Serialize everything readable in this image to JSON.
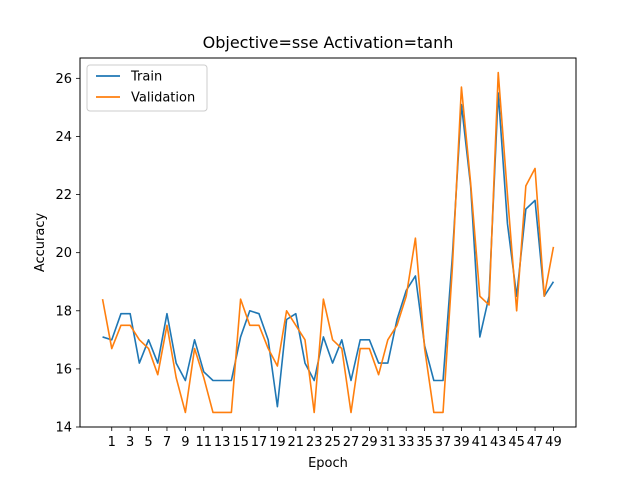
{
  "chart_data": {
    "type": "line",
    "title": "Objective=sse Activation=tanh",
    "xlabel": "Epoch",
    "ylabel": "Accuracy",
    "xlim": [
      -2.45,
      51.45
    ],
    "ylim": [
      14,
      26.7
    ],
    "x_ticks": [
      1,
      3,
      5,
      7,
      9,
      11,
      13,
      15,
      17,
      19,
      21,
      23,
      25,
      27,
      29,
      31,
      33,
      35,
      37,
      39,
      41,
      43,
      45,
      47,
      49
    ],
    "y_ticks": [
      14,
      16,
      18,
      20,
      22,
      24,
      26
    ],
    "grid": false,
    "legend_position": "top-left",
    "x": [
      0,
      1,
      2,
      3,
      4,
      5,
      6,
      7,
      8,
      9,
      10,
      11,
      12,
      13,
      14,
      15,
      16,
      17,
      18,
      19,
      20,
      21,
      22,
      23,
      24,
      25,
      26,
      27,
      28,
      29,
      30,
      31,
      32,
      33,
      34,
      35,
      36,
      37,
      38,
      39,
      40,
      41,
      42,
      43,
      44,
      45,
      46,
      47,
      48,
      49
    ],
    "series": [
      {
        "name": "Train",
        "color": "#1f77b4",
        "values": [
          17.1,
          17.0,
          17.9,
          17.9,
          16.2,
          17.0,
          16.2,
          17.9,
          16.2,
          15.6,
          17.0,
          15.9,
          15.6,
          15.6,
          15.6,
          17.1,
          18.0,
          17.9,
          17.0,
          14.7,
          17.7,
          17.9,
          16.2,
          15.6,
          17.1,
          16.2,
          17.0,
          15.6,
          17.0,
          17.0,
          16.2,
          16.2,
          17.7,
          18.7,
          19.2,
          16.8,
          15.6,
          15.6,
          19.8,
          25.1,
          22.3,
          17.1,
          18.5,
          25.5,
          21.0,
          18.5,
          21.5,
          21.8,
          18.5,
          19.0
        ]
      },
      {
        "name": "Validation",
        "color": "#ff7f0e",
        "values": [
          18.4,
          16.7,
          17.5,
          17.5,
          17.0,
          16.7,
          15.8,
          17.5,
          15.7,
          14.5,
          16.7,
          15.7,
          14.5,
          14.5,
          14.5,
          18.4,
          17.5,
          17.5,
          16.7,
          16.1,
          18.0,
          17.5,
          17.0,
          14.5,
          18.4,
          17.0,
          16.7,
          14.5,
          16.7,
          16.7,
          15.8,
          17.0,
          17.5,
          18.5,
          20.5,
          16.7,
          14.5,
          14.5,
          19.4,
          25.7,
          22.4,
          18.5,
          18.2,
          26.2,
          22.0,
          18.0,
          22.3,
          22.9,
          18.5,
          20.2
        ]
      }
    ]
  }
}
